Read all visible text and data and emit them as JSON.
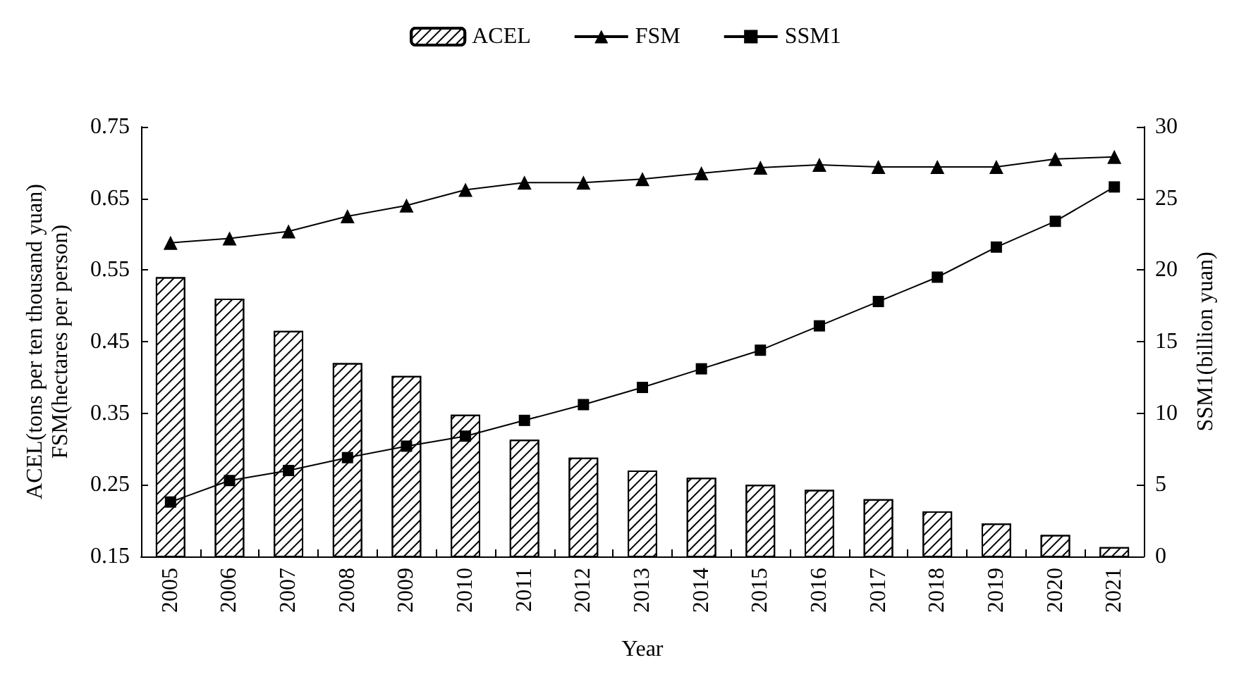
{
  "chart_data": {
    "type": "bar",
    "xlabel": "Year",
    "ylabel": "ACEL(tons per ten thousand yuan)\nFSM(hectares per person)",
    "y2label": "SSM1(billion yuan)",
    "categories": [
      "2005",
      "2006",
      "2007",
      "2008",
      "2009",
      "2010",
      "2011",
      "2012",
      "2013",
      "2014",
      "2015",
      "2016",
      "2017",
      "2018",
      "2019",
      "2020",
      "2021"
    ],
    "series": [
      {
        "name": "ACEL",
        "color": "#000000",
        "values": [
          0.54,
          0.51,
          0.465,
          0.42,
          0.402,
          0.348,
          0.313,
          0.288,
          0.27,
          0.26,
          0.25,
          0.243,
          0.23,
          0.213,
          0.196,
          0.18,
          0.163
        ]
      },
      {
        "name": "FSM",
        "type": "line",
        "marker": "triangle",
        "color": "#000000",
        "values": [
          0.588,
          0.594,
          0.604,
          0.625,
          0.64,
          0.662,
          0.672,
          0.672,
          0.677,
          0.685,
          0.693,
          0.697,
          0.694,
          0.694,
          0.694,
          0.705,
          0.708
        ]
      },
      {
        "name": "SSM1",
        "type": "line",
        "marker": "square",
        "axis": "y2",
        "color": "#000000",
        "values": [
          3.8,
          5.3,
          6.0,
          6.9,
          7.7,
          8.4,
          9.5,
          10.6,
          11.8,
          13.1,
          14.4,
          16.1,
          17.8,
          19.5,
          21.6,
          23.4,
          25.8
        ]
      }
    ],
    "ylim": [
      0.15,
      0.75
    ],
    "yticks": [
      0.15,
      0.25,
      0.35,
      0.45,
      0.55,
      0.65,
      0.75
    ],
    "y2lim": [
      0,
      30
    ],
    "y2ticks": [
      0,
      5,
      10,
      15,
      20,
      25,
      30
    ],
    "grid": false,
    "legend": "top",
    "line_style": "solid"
  }
}
